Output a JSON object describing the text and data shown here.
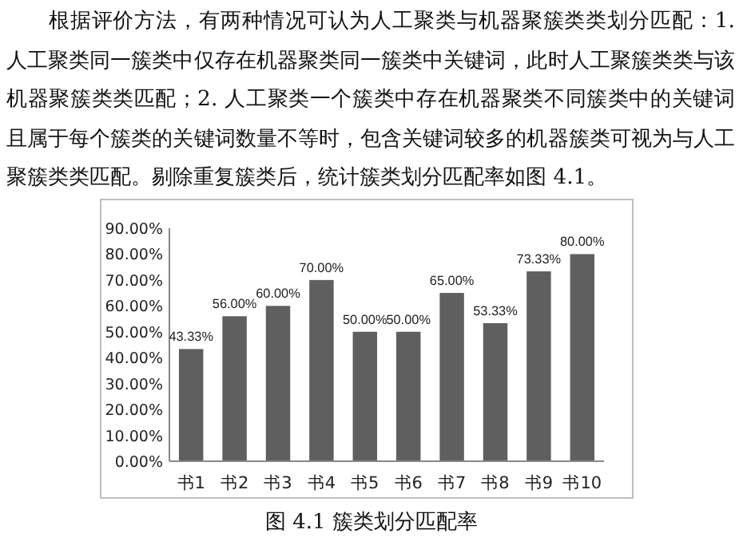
{
  "chart_data": {
    "type": "bar",
    "title": "图 4.1  簇类划分匹配率",
    "annotations": [
      "根据评价方法，有两种情况可认为人工聚类与机器聚簇类类划分匹配：1. 人工聚类同一簇类中仅存在机器聚类同一簇类中关键词，此时人工聚簇类类与该机器聚簇类类匹配；2. 人工聚类一个簇类中存在机器聚类不同簇类中的关键词且属于每个簇类的关键词数量不等时，包含关键词较多的机器簇类可视为与人工聚簇类类匹配。剔除重复簇类后，统计簇类划分匹配率如图 4.1。"
    ],
    "categories": [
      "书1",
      "书2",
      "书3",
      "书4",
      "书5",
      "书6",
      "书7",
      "书8",
      "书9",
      "书10"
    ],
    "values": [
      43.33,
      56.0,
      60.0,
      70.0,
      50.0,
      50.0,
      65.0,
      53.33,
      73.33,
      80.0
    ],
    "value_labels": [
      "43.33%",
      "56.00%",
      "60.00%",
      "70.00%",
      "50.00%",
      "50.00%",
      "65.00%",
      "53.33%",
      "73.33%",
      "80.00%"
    ],
    "color": "#5f5f5f",
    "ylim": [
      0,
      90
    ],
    "yticks": [
      {
        "value": 0,
        "label": "0.00%"
      },
      {
        "value": 10,
        "label": "10.00%"
      },
      {
        "value": 20,
        "label": "20.00%"
      },
      {
        "value": 30,
        "label": "30.00%"
      },
      {
        "value": 40,
        "label": "40.00%"
      },
      {
        "value": 50,
        "label": "50.00%"
      },
      {
        "value": 60,
        "label": "60.00%"
      },
      {
        "value": 70,
        "label": "70.00%"
      },
      {
        "value": 80,
        "label": "80.00%"
      },
      {
        "value": 90,
        "label": "90.00%"
      }
    ],
    "grid": false
  }
}
